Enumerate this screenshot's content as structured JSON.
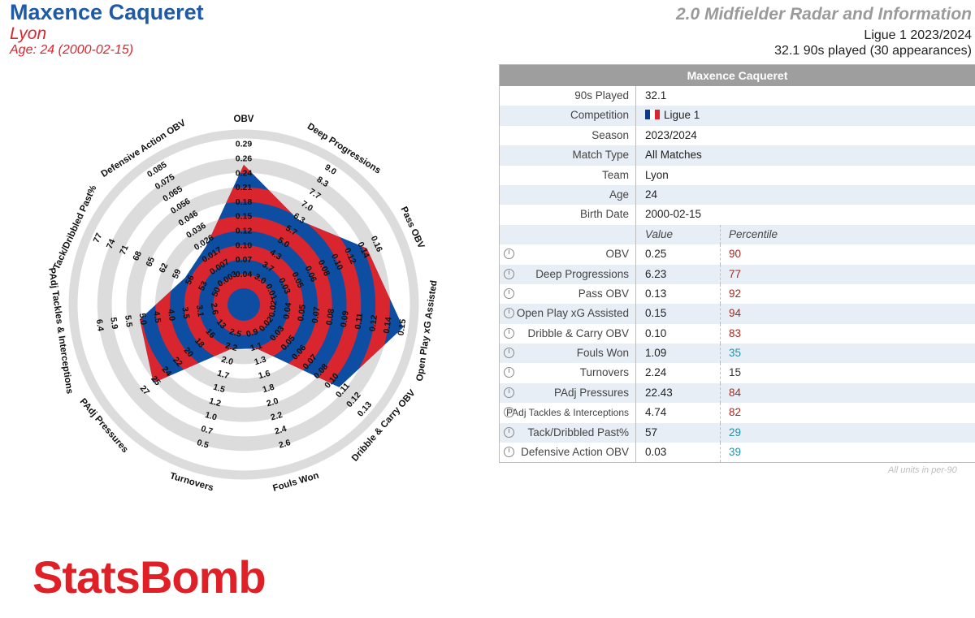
{
  "header": {
    "player_name": "Maxence Caqueret",
    "team": "Lyon",
    "age": "Age: 24 (2000-02-15)",
    "title": "2.0 Midfielder Radar and Information",
    "league_season": "Ligue 1 2023/2024",
    "played": "32.1 90s played (30 appearances)"
  },
  "colors": {
    "red": "#d9262e",
    "blue": "#0d4ea3",
    "ring": "#dcdcdc",
    "pct_red": "#a12b22",
    "pct_teal": "#2a8fa3"
  },
  "info": {
    "header": "Maxence Caqueret",
    "rows": [
      {
        "label": "90s Played",
        "value": "32.1"
      },
      {
        "label": "Competition",
        "value": "Ligue 1",
        "flag": "france-flag"
      },
      {
        "label": "Season",
        "value": "2023/2024"
      },
      {
        "label": "Match Type",
        "value": "All Matches"
      },
      {
        "label": "Team",
        "value": "Lyon"
      },
      {
        "label": "Age",
        "value": "24"
      },
      {
        "label": "Birth Date",
        "value": "2000-02-15"
      }
    ],
    "col_value": "Value",
    "col_percentile": "Percentile",
    "metrics": [
      {
        "label": "OBV",
        "value": "0.25",
        "percentile": "90",
        "tone": "red"
      },
      {
        "label": "Deep Progressions",
        "value": "6.23",
        "percentile": "77",
        "tone": "red"
      },
      {
        "label": "Pass OBV",
        "value": "0.13",
        "percentile": "92",
        "tone": "red"
      },
      {
        "label": "Open Play xG Assisted",
        "value": "0.15",
        "percentile": "94",
        "tone": "red"
      },
      {
        "label": "Dribble & Carry OBV",
        "value": "0.10",
        "percentile": "83",
        "tone": "red"
      },
      {
        "label": "Fouls Won",
        "value": "1.09",
        "percentile": "35",
        "tone": "teal"
      },
      {
        "label": "Turnovers",
        "value": "2.24",
        "percentile": "15",
        "tone": "dark"
      },
      {
        "label": "PAdj Pressures",
        "value": "22.43",
        "percentile": "84",
        "tone": "red"
      },
      {
        "label": "PAdj Tackles & Interceptions",
        "value": "4.74",
        "percentile": "82",
        "tone": "red"
      },
      {
        "label": "Tack/Dribbled Past%",
        "value": "57",
        "percentile": "29",
        "tone": "teal"
      },
      {
        "label": "Defensive Action OBV",
        "value": "0.03",
        "percentile": "39",
        "tone": "teal"
      }
    ],
    "footnote": "All units in per-90"
  },
  "logo": "StatsBomb",
  "chart_data": {
    "type": "radar",
    "axes": [
      {
        "label": "OBV",
        "ticks": [
          "0.04",
          "0.07",
          "0.10",
          "0.12",
          "0.15",
          "0.18",
          "0.21",
          "0.24",
          "0.26",
          "0.29"
        ],
        "value": 0.25,
        "min": 0.015,
        "max": 0.29
      },
      {
        "label": "Deep Progressions",
        "ticks": [
          "3.0",
          "3.7",
          "4.3",
          "5.0",
          "5.7",
          "6.3",
          "7.0",
          "7.7",
          "8.3",
          "9.0"
        ],
        "value": 6.23,
        "min": 2.35,
        "max": 9.0
      },
      {
        "label": "Pass OBV",
        "ticks": [
          "0.01",
          "0.03",
          "0.05",
          "0.06",
          "0.08",
          "0.10",
          "0.12",
          "0.14",
          "0.16"
        ],
        "value": 0.13,
        "min": -0.01,
        "max": 0.16
      },
      {
        "label": "Open Play xG Assisted",
        "ticks": [
          "0.02",
          "0.04",
          "0.05",
          "0.07",
          "0.08",
          "0.09",
          "0.11",
          "0.12",
          "0.14",
          "0.15"
        ],
        "value": 0.15,
        "min": 0.005,
        "max": 0.15
      },
      {
        "label": "Dribble & Carry OBV",
        "ticks": [
          "0.02",
          "0.03",
          "0.05",
          "0.06",
          "0.07",
          "0.08",
          "0.10",
          "0.11",
          "0.12",
          "0.13"
        ],
        "value": 0.1,
        "min": 0.005,
        "max": 0.13
      },
      {
        "label": "Fouls Won",
        "ticks": [
          "0.9",
          "1.1",
          "1.3",
          "1.6",
          "1.8",
          "2.0",
          "2.2",
          "2.4",
          "2.6"
        ],
        "value": 1.09,
        "min": 0.7,
        "max": 2.6
      },
      {
        "label": "Turnovers",
        "ticks": [
          "2.5",
          "2.2",
          "2.0",
          "1.7",
          "1.5",
          "1.2",
          "1.0",
          "0.7",
          "0.5"
        ],
        "value": 2.24,
        "min": 2.7,
        "max": 0.5
      },
      {
        "label": "PAdj Pressures",
        "ticks": [
          "13",
          "16",
          "18",
          "20",
          "22",
          "24",
          "25",
          "27"
        ],
        "value": 22.43,
        "min": 11,
        "max": 27
      },
      {
        "label": "PAdj Tackles & Interceptions",
        "ticks": [
          "2.6",
          "3.1",
          "3.5",
          "4.0",
          "4.5",
          "5.0",
          "5.5",
          "5.9",
          "6.4"
        ],
        "value": 4.74,
        "min": 2.1,
        "max": 6.4
      },
      {
        "label": "Tack/Dribbled Past%",
        "ticks": [
          "50",
          "53",
          "56",
          "59",
          "62",
          "65",
          "68",
          "71",
          "74",
          "77"
        ],
        "value": 57,
        "min": 47,
        "max": 77
      },
      {
        "label": "Defensive Action OBV",
        "ticks": [
          "0.003",
          "0.007",
          "0.017",
          "0.026",
          "0.036",
          "0.046",
          "0.056",
          "0.065",
          "0.075",
          "0.085"
        ],
        "value": 0.03,
        "min": -0.002,
        "max": 0.085
      }
    ]
  }
}
